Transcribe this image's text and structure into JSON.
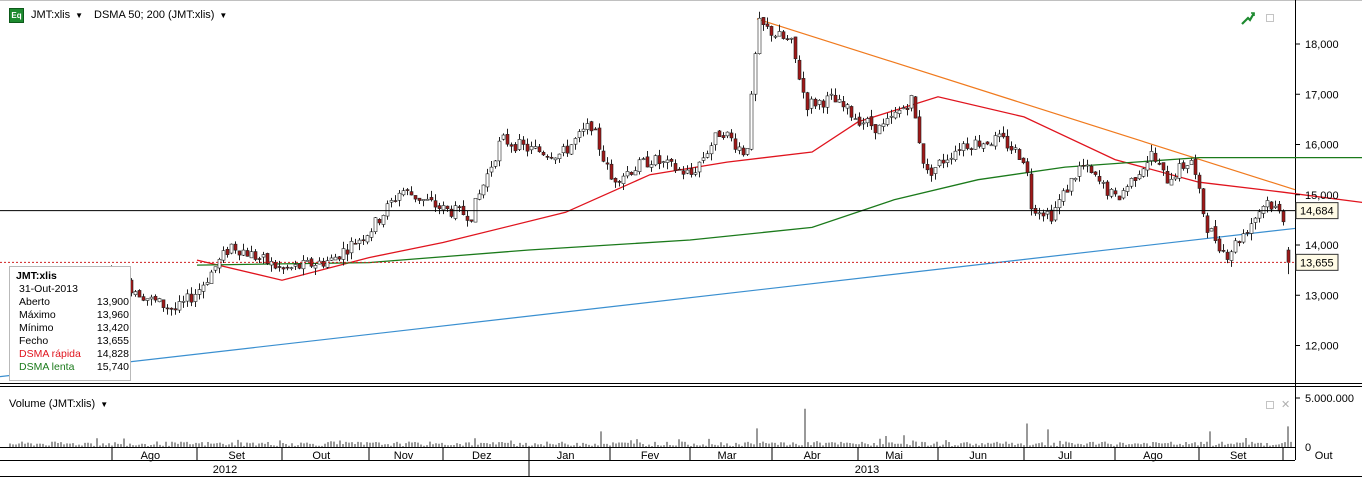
{
  "toolbar": {
    "symbol_label": "JMT:xlis",
    "indicator_label": "DSMA 50; 200 (JMT:xlis)",
    "eq_icon": "Eq"
  },
  "info_box": {
    "symbol": "JMT:xlis",
    "date": "31-Out-2013",
    "rows": [
      {
        "label": "Aberto",
        "value": "13,900",
        "color": "#000000"
      },
      {
        "label": "Máximo",
        "value": "13,960",
        "color": "#000000"
      },
      {
        "label": "Mínimo",
        "value": "13,420",
        "color": "#000000"
      },
      {
        "label": "Fecho",
        "value": "13,655",
        "color": "#000000"
      },
      {
        "label": "DSMA rápida",
        "value": "14,828",
        "color": "#e0141e"
      },
      {
        "label": "DSMA lenta",
        "value": "15,740",
        "color": "#1b7a1b"
      }
    ]
  },
  "price_axis": {
    "ticks": [
      {
        "value": 18000,
        "label": "18,000"
      },
      {
        "value": 17000,
        "label": "17,000"
      },
      {
        "value": 16000,
        "label": "16,000"
      },
      {
        "value": 15000,
        "label": "15,000"
      },
      {
        "value": 14000,
        "label": "14,000"
      },
      {
        "value": 13000,
        "label": "13,000"
      },
      {
        "value": 12000,
        "label": "12,000"
      }
    ],
    "markers": [
      {
        "value": 14684,
        "label": "14,684"
      },
      {
        "value": 13655,
        "label": "13,655"
      }
    ]
  },
  "volume_panel": {
    "label": "Volume (JMT:xlis)",
    "tick_label": "5.000.000",
    "zero_label": "0"
  },
  "time_axis": {
    "months": [
      "Ago",
      "Set",
      "Out",
      "Nov",
      "Dez",
      "Jan",
      "Fev",
      "Mar",
      "Abr",
      "Mai",
      "Jun",
      "Jul",
      "Ago",
      "Set",
      "Out"
    ],
    "years": [
      "2012",
      "2013"
    ]
  },
  "colors": {
    "up_candle": "#ffffff",
    "down_candle": "#a01818",
    "fast_ma": "#e0141e",
    "slow_ma": "#1b7a1b",
    "resistance_line": "#f07a1e",
    "support_line": "#3a8fd0"
  },
  "chart_data": {
    "type": "candlestick",
    "title": "",
    "symbol": "JMT:xlis",
    "ylim": [
      11300,
      18900
    ],
    "series": [
      {
        "name": "DSMA rápida",
        "kind": "line",
        "points": [
          [
            "2012-09-01",
            13700
          ],
          [
            "2012-10-01",
            13300
          ],
          [
            "2012-11-01",
            13750
          ],
          [
            "2012-12-01",
            14050
          ],
          [
            "2013-01-15",
            14650
          ],
          [
            "2013-02-15",
            15400
          ],
          [
            "2013-03-15",
            15650
          ],
          [
            "2013-04-15",
            15850
          ],
          [
            "2013-05-01",
            16450
          ],
          [
            "2013-06-01",
            16950
          ],
          [
            "2013-07-01",
            16550
          ],
          [
            "2013-08-01",
            15700
          ],
          [
            "2013-09-01",
            15250
          ],
          [
            "2013-10-01",
            15050
          ],
          [
            "2013-10-31",
            14828
          ]
        ]
      },
      {
        "name": "DSMA lenta",
        "kind": "line",
        "points": [
          [
            "2012-09-01",
            13600
          ],
          [
            "2012-11-01",
            13650
          ],
          [
            "2013-01-01",
            13900
          ],
          [
            "2013-03-01",
            14100
          ],
          [
            "2013-04-15",
            14350
          ],
          [
            "2013-05-15",
            14900
          ],
          [
            "2013-06-15",
            15300
          ],
          [
            "2013-07-15",
            15550
          ],
          [
            "2013-09-01",
            15740
          ],
          [
            "2013-10-31",
            15740
          ]
        ]
      }
    ],
    "volume_max": 5000000,
    "last": {
      "date": "31-Out-2013",
      "open": 13900,
      "high": 13960,
      "low": 13420,
      "close": 13655
    }
  }
}
